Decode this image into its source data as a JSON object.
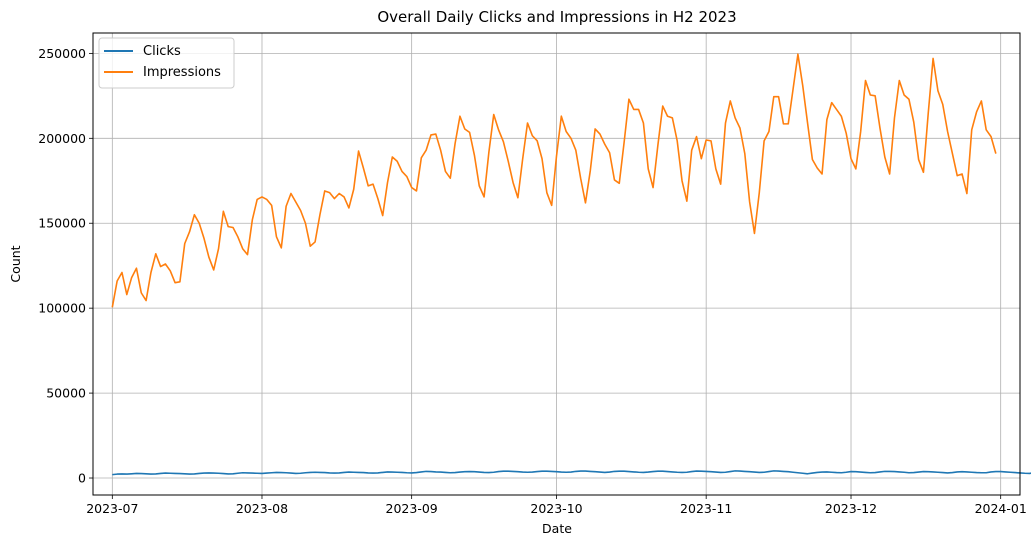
{
  "chart_data": {
    "type": "line",
    "title": "Overall Daily Clicks and Impressions in H2 2023",
    "xlabel": "Date",
    "ylabel": "Count",
    "xlim": [
      "2023-06-27",
      "2024-01-05"
    ],
    "ylim": [
      -10000,
      262000
    ],
    "x_ticks": [
      "2023-07-01",
      "2023-08-01",
      "2023-09-01",
      "2023-10-01",
      "2023-11-01",
      "2023-12-01",
      "2024-01-01"
    ],
    "x_tick_labels": [
      "2023-07",
      "2023-08",
      "2023-09",
      "2023-10",
      "2023-11",
      "2023-12",
      "2024-01"
    ],
    "y_ticks": [
      0,
      50000,
      100000,
      150000,
      200000,
      250000
    ],
    "y_tick_labels": [
      "0",
      "50000",
      "100000",
      "150000",
      "200000",
      "250000"
    ],
    "grid": true,
    "legend_position": "top-left",
    "start_date": "2023-07-01",
    "series": [
      {
        "name": "Clicks",
        "color": "#1f77b4",
        "values": [
          2000,
          2300,
          2400,
          2300,
          2500,
          2700,
          2600,
          2500,
          2300,
          2400,
          2700,
          2900,
          2800,
          2700,
          2600,
          2500,
          2300,
          2400,
          2700,
          2900,
          3000,
          2900,
          2800,
          2600,
          2400,
          2500,
          2800,
          3100,
          3000,
          2900,
          2800,
          2700,
          2900,
          3100,
          3300,
          3200,
          3100,
          2900,
          2700,
          2800,
          3100,
          3300,
          3400,
          3300,
          3200,
          3000,
          2900,
          3000,
          3300,
          3500,
          3400,
          3300,
          3200,
          3000,
          2900,
          3000,
          3300,
          3600,
          3500,
          3400,
          3300,
          3100,
          3000,
          3200,
          3600,
          3900,
          3800,
          3600,
          3500,
          3300,
          3100,
          3200,
          3500,
          3700,
          3800,
          3700,
          3500,
          3300,
          3200,
          3400,
          3800,
          4000,
          4000,
          3900,
          3700,
          3500,
          3400,
          3500,
          3800,
          4000,
          4000,
          3900,
          3700,
          3500,
          3400,
          3500,
          3900,
          4100,
          4100,
          3900,
          3700,
          3500,
          3300,
          3500,
          3900,
          4000,
          4000,
          3800,
          3600,
          3400,
          3300,
          3500,
          3800,
          4000,
          4000,
          3800,
          3600,
          3400,
          3300,
          3400,
          3800,
          4100,
          4000,
          3900,
          3700,
          3500,
          3300,
          3400,
          3800,
          4200,
          4100,
          3900,
          3700,
          3500,
          3300,
          3400,
          3800,
          4200,
          4100,
          3900,
          3700,
          3400,
          3100,
          2800,
          2500,
          2900,
          3300,
          3500,
          3600,
          3400,
          3200,
          3100,
          3400,
          3800,
          3700,
          3500,
          3300,
          3100,
          3200,
          3600,
          3900,
          3900,
          3800,
          3600,
          3400,
          3100,
          3200,
          3500,
          3800,
          3700,
          3600,
          3400,
          3200,
          3000,
          3200,
          3600,
          3700,
          3600,
          3400,
          3200,
          3100,
          3100,
          3600,
          3800,
          3800,
          3600,
          3400,
          3200,
          3000,
          2800,
          2700,
          3300,
          3600,
          3500,
          3400,
          3200,
          3000,
          2900
        ]
      },
      {
        "name": "Impressions",
        "color": "#ff7f0e",
        "values": [
          100500,
          116000,
          121000,
          108000,
          118000,
          123500,
          109000,
          104500,
          121000,
          132000,
          124500,
          126000,
          122000,
          115000,
          115500,
          138000,
          145000,
          155000,
          150000,
          141000,
          130000,
          122500,
          135000,
          157000,
          148000,
          147500,
          142000,
          135000,
          131500,
          152000,
          164000,
          165500,
          164000,
          160500,
          142000,
          135500,
          160000,
          167500,
          162500,
          157500,
          150000,
          136500,
          139000,
          155000,
          169000,
          168000,
          164500,
          167500,
          165500,
          159000,
          170000,
          192500,
          182500,
          172000,
          173000,
          164500,
          154500,
          174000,
          189000,
          186500,
          180500,
          177500,
          171000,
          169000,
          188500,
          193000,
          202000,
          202500,
          193000,
          180500,
          176500,
          197000,
          213000,
          205500,
          203500,
          190000,
          172000,
          165500,
          192000,
          214000,
          205000,
          198000,
          186500,
          174000,
          165000,
          188000,
          209000,
          201500,
          198500,
          188000,
          168000,
          160500,
          189500,
          213000,
          204000,
          200000,
          193000,
          176500,
          162000,
          181000,
          205500,
          202500,
          196500,
          191500,
          175500,
          173500,
          197500,
          223000,
          217000,
          217000,
          209000,
          182000,
          171000,
          196000,
          219000,
          213000,
          212000,
          198500,
          175000,
          163000,
          193000,
          201000,
          188000,
          199000,
          198500,
          182000,
          173000,
          209000,
          222000,
          212000,
          206000,
          191000,
          162500,
          144000,
          168000,
          198500,
          204000,
          224500,
          224500,
          208500,
          208500,
          229000,
          249500,
          231000,
          209000,
          187500,
          182500,
          179000,
          211000,
          221000,
          217000,
          213000,
          203000,
          188000,
          182000,
          204000,
          234000,
          225500,
          225000,
          206000,
          189000,
          179000,
          212000,
          234000,
          225500,
          223000,
          209500,
          187500,
          180000,
          215000,
          247000,
          228000,
          220000,
          204000,
          191000,
          178000,
          179000,
          167500,
          205000,
          215500,
          222000,
          205000,
          201000,
          191000
        ]
      }
    ]
  }
}
